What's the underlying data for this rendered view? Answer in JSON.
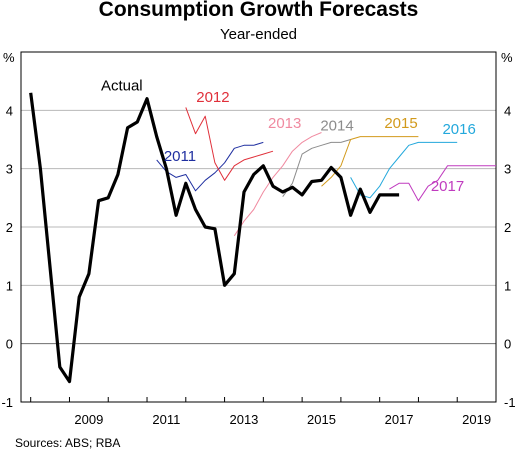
{
  "chart_data": {
    "type": "line",
    "title": "Consumption Growth Forecasts",
    "subtitle": "Year-ended",
    "ylabel_left": "%",
    "ylabel_right": "%",
    "ylim": [
      -1,
      5
    ],
    "xlim": [
      2007.75,
      2020.0
    ],
    "yticks": [
      -1,
      0,
      1,
      2,
      3,
      4
    ],
    "xticks": [
      "2009",
      "2011",
      "2013",
      "2015",
      "2017",
      "2019"
    ],
    "grid": true,
    "source": "Sources:  ABS; RBA",
    "series": [
      {
        "name": "Actual",
        "color": "#000000",
        "width": 3.2,
        "x": [
          2008.0,
          2008.25,
          2008.5,
          2008.75,
          2009.0,
          2009.25,
          2009.5,
          2009.75,
          2010.0,
          2010.25,
          2010.5,
          2010.75,
          2011.0,
          2011.25,
          2011.5,
          2011.75,
          2012.0,
          2012.25,
          2012.5,
          2012.75,
          2013.0,
          2013.25,
          2013.5,
          2013.75,
          2014.0,
          2014.25,
          2014.5,
          2014.75,
          2015.0,
          2015.25,
          2015.5,
          2015.75,
          2016.0,
          2016.25,
          2016.5,
          2016.75,
          2017.0,
          2017.25,
          2017.5
        ],
        "values": [
          4.3,
          3.0,
          1.3,
          -0.4,
          -0.65,
          0.8,
          1.2,
          2.45,
          2.5,
          2.9,
          3.7,
          3.8,
          4.2,
          3.55,
          3.0,
          2.2,
          2.75,
          2.3,
          2.0,
          1.97,
          1.0,
          1.2,
          2.6,
          2.9,
          3.05,
          2.7,
          2.6,
          2.68,
          2.55,
          2.78,
          2.8,
          3.02,
          2.85,
          2.2,
          2.65,
          2.25,
          2.55,
          2.55,
          2.55
        ]
      },
      {
        "name": "2011",
        "color": "#1f2fa0",
        "width": 1,
        "x": [
          2011.25,
          2011.5,
          2011.75,
          2012.0,
          2012.25,
          2012.5,
          2012.75,
          2013.0,
          2013.25,
          2013.5,
          2013.75,
          2014.0
        ],
        "values": [
          3.15,
          2.95,
          2.85,
          2.9,
          2.62,
          2.8,
          2.93,
          3.1,
          3.35,
          3.4,
          3.4,
          3.45
        ]
      },
      {
        "name": "2012",
        "color": "#e0303a",
        "width": 1,
        "x": [
          2012.0,
          2012.25,
          2012.5,
          2012.75,
          2013.0,
          2013.25,
          2013.5,
          2013.75,
          2014.0,
          2014.25
        ],
        "values": [
          4.05,
          3.6,
          3.9,
          3.1,
          2.8,
          3.05,
          3.15,
          3.2,
          3.25,
          3.3
        ]
      },
      {
        "name": "2013",
        "color": "#f08aa0",
        "width": 1,
        "x": [
          2013.25,
          2013.5,
          2013.75,
          2014.0,
          2014.25,
          2014.5,
          2014.75,
          2015.0,
          2015.25,
          2015.5
        ],
        "values": [
          1.85,
          2.1,
          2.3,
          2.6,
          2.85,
          3.05,
          3.3,
          3.45,
          3.55,
          3.62
        ]
      },
      {
        "name": "2014",
        "color": "#8c8c8c",
        "width": 1,
        "x": [
          2014.5,
          2014.75,
          2015.0,
          2015.25,
          2015.5,
          2015.75,
          2016.0,
          2016.25
        ],
        "values": [
          2.52,
          2.75,
          3.25,
          3.35,
          3.4,
          3.45,
          3.45,
          3.5
        ]
      },
      {
        "name": "2015",
        "color": "#d29a1c",
        "width": 1,
        "x": [
          2015.5,
          2015.75,
          2016.0,
          2016.25,
          2016.5,
          2016.75,
          2017.0,
          2017.5,
          2018.0
        ],
        "values": [
          2.7,
          2.85,
          3.05,
          3.5,
          3.55,
          3.55,
          3.55,
          3.55,
          3.55
        ]
      },
      {
        "name": "2016",
        "color": "#23a8dc",
        "width": 1,
        "x": [
          2016.25,
          2016.5,
          2016.75,
          2017.0,
          2017.25,
          2017.5,
          2017.75,
          2018.0,
          2018.5,
          2019.0
        ],
        "values": [
          2.85,
          2.55,
          2.5,
          2.7,
          3.0,
          3.2,
          3.4,
          3.45,
          3.45,
          3.45
        ]
      },
      {
        "name": "2017",
        "color": "#c03bbf",
        "width": 1,
        "x": [
          2017.25,
          2017.5,
          2017.75,
          2018.0,
          2018.25,
          2018.5,
          2018.75,
          2019.0,
          2019.5,
          2020.0
        ],
        "values": [
          2.65,
          2.75,
          2.75,
          2.45,
          2.7,
          2.8,
          3.05,
          3.05,
          3.05,
          3.05
        ]
      }
    ],
    "annotations": [
      {
        "text": "Actual",
        "color": "#000000",
        "x": 2010.35,
        "y": 4.43
      },
      {
        "text": "2011",
        "color": "#1f2fa0",
        "x": 2011.85,
        "y": 3.22
      },
      {
        "text": "2012",
        "color": "#e0303a",
        "x": 2012.7,
        "y": 4.23
      },
      {
        "text": "2013",
        "color": "#f08aa0",
        "x": 2014.55,
        "y": 3.78
      },
      {
        "text": "2014",
        "color": "#8c8c8c",
        "x": 2015.9,
        "y": 3.74
      },
      {
        "text": "2015",
        "color": "#d29a1c",
        "x": 2017.55,
        "y": 3.78
      },
      {
        "text": "2016",
        "color": "#23a8dc",
        "x": 2019.05,
        "y": 3.68
      },
      {
        "text": "2017",
        "color": "#c03bbf",
        "x": 2018.75,
        "y": 2.7
      }
    ]
  }
}
